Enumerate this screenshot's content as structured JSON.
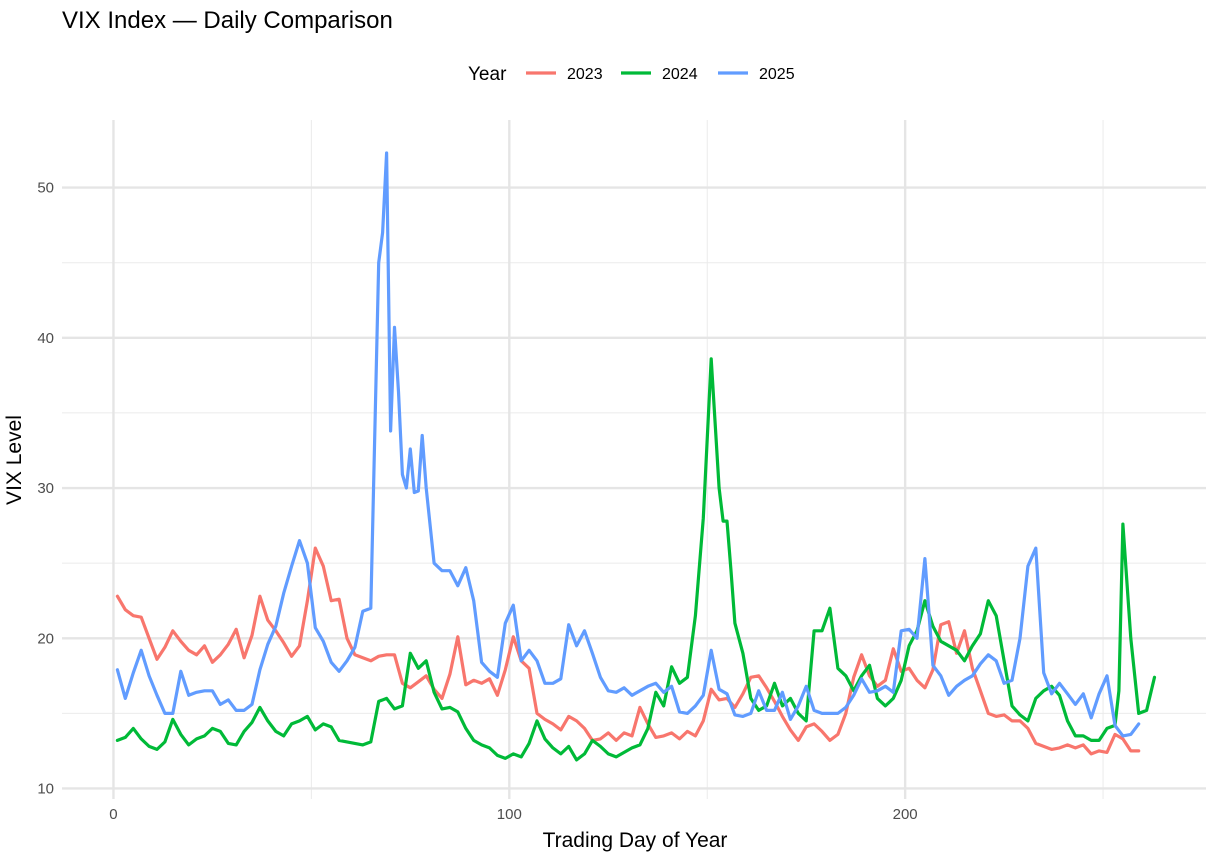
{
  "chart_data": {
    "type": "line",
    "title": "VIX Index — Daily Comparison",
    "xlabel": "Trading Day of Year",
    "ylabel": "VIX Level",
    "xlim": [
      -13,
      276
    ],
    "ylim": [
      9.3,
      54.5
    ],
    "x_ticks": [
      0,
      100,
      200
    ],
    "y_ticks": [
      10,
      20,
      30,
      40,
      50
    ],
    "grid": true,
    "legend": {
      "title": "Year",
      "position": "top"
    },
    "series": [
      {
        "name": "2023",
        "color": "#F8766D",
        "x": [
          1,
          3,
          5,
          7,
          9,
          11,
          13,
          15,
          17,
          19,
          21,
          23,
          25,
          27,
          29,
          31,
          33,
          35,
          37,
          39,
          41,
          43,
          45,
          47,
          49,
          51,
          53,
          55,
          57,
          59,
          61,
          63,
          65,
          67,
          69,
          71,
          73,
          75,
          77,
          79,
          81,
          83,
          85,
          87,
          89,
          91,
          93,
          95,
          97,
          99,
          101,
          103,
          105,
          107,
          109,
          111,
          113,
          115,
          117,
          119,
          121,
          123,
          125,
          127,
          129,
          131,
          133,
          135,
          137,
          139,
          141,
          143,
          145,
          147,
          149,
          151,
          153,
          155,
          157,
          159,
          161,
          163,
          165,
          167,
          169,
          171,
          173,
          175,
          177,
          179,
          181,
          183,
          185,
          187,
          189,
          191,
          193,
          195,
          197,
          199,
          201,
          203,
          205,
          207,
          209,
          211,
          213,
          215,
          217,
          219,
          221,
          223,
          225,
          227,
          229,
          231,
          233,
          235,
          237,
          239,
          241,
          243,
          245,
          247,
          249,
          251,
          253,
          255,
          257,
          259
        ],
        "values": [
          22.8,
          21.9,
          21.5,
          21.4,
          20.0,
          18.6,
          19.4,
          20.5,
          19.8,
          19.2,
          18.9,
          19.5,
          18.4,
          18.9,
          19.6,
          20.6,
          18.7,
          20.2,
          22.8,
          21.2,
          20.5,
          19.7,
          18.8,
          19.5,
          22.5,
          26.0,
          24.8,
          22.5,
          22.6,
          20.0,
          18.9,
          18.7,
          18.5,
          18.8,
          18.9,
          18.9,
          17.0,
          16.7,
          17.1,
          17.5,
          16.6,
          16.0,
          17.6,
          20.1,
          16.9,
          17.2,
          17.0,
          17.3,
          16.2,
          17.9,
          20.1,
          18.5,
          18.0,
          15.0,
          14.6,
          14.3,
          13.9,
          14.8,
          14.5,
          14.0,
          13.2,
          13.3,
          13.7,
          13.2,
          13.7,
          13.5,
          15.4,
          14.3,
          13.4,
          13.5,
          13.7,
          13.3,
          13.8,
          13.5,
          14.5,
          16.6,
          15.9,
          16.0,
          15.4,
          16.3,
          17.4,
          17.5,
          16.7,
          15.8,
          14.8,
          13.9,
          13.2,
          14.1,
          14.3,
          13.8,
          13.2,
          13.6,
          15.0,
          17.4,
          18.9,
          17.5,
          16.8,
          17.2,
          19.3,
          17.8,
          18.0,
          17.2,
          16.7,
          17.9,
          20.9,
          21.1,
          19.0,
          20.5,
          18.0,
          16.5,
          15.0,
          14.8,
          14.9,
          14.5,
          14.5,
          14.0,
          13.0,
          12.8,
          12.6,
          12.7,
          12.9,
          12.7,
          12.9,
          12.3,
          12.5,
          12.4,
          13.6,
          13.3,
          12.5,
          12.5
        ]
      },
      {
        "name": "2024",
        "color": "#00BA38",
        "x": [
          1,
          3,
          5,
          7,
          9,
          11,
          13,
          15,
          17,
          19,
          21,
          23,
          25,
          27,
          29,
          31,
          33,
          35,
          37,
          39,
          41,
          43,
          45,
          47,
          49,
          51,
          53,
          55,
          57,
          59,
          61,
          63,
          65,
          67,
          69,
          71,
          73,
          75,
          77,
          79,
          81,
          83,
          85,
          87,
          89,
          91,
          93,
          95,
          97,
          99,
          101,
          103,
          105,
          107,
          109,
          111,
          113,
          115,
          117,
          119,
          121,
          123,
          125,
          127,
          129,
          131,
          133,
          135,
          137,
          139,
          141,
          143,
          145,
          147,
          149,
          151,
          153,
          154,
          155,
          156,
          157,
          159,
          161,
          163,
          165,
          167,
          169,
          171,
          173,
          175,
          177,
          179,
          181,
          183,
          185,
          187,
          189,
          191,
          193,
          195,
          197,
          199,
          201,
          203,
          205,
          207,
          209,
          211,
          213,
          215,
          217,
          219,
          221,
          223,
          225,
          227,
          229,
          231,
          233,
          235,
          237,
          239,
          241,
          243,
          245,
          247,
          249,
          251,
          253,
          254,
          255,
          257,
          259,
          261,
          263
        ],
        "values": [
          13.2,
          13.4,
          14.0,
          13.3,
          12.8,
          12.6,
          13.1,
          14.6,
          13.6,
          12.9,
          13.3,
          13.5,
          14.0,
          13.8,
          13.0,
          12.9,
          13.8,
          14.4,
          15.4,
          14.5,
          13.8,
          13.5,
          14.3,
          14.5,
          14.8,
          13.9,
          14.3,
          14.1,
          13.2,
          13.1,
          13.0,
          12.9,
          13.1,
          15.8,
          16.0,
          15.3,
          15.5,
          19.0,
          18.0,
          18.5,
          16.4,
          15.3,
          15.4,
          15.1,
          14.0,
          13.2,
          12.9,
          12.7,
          12.2,
          12.0,
          12.3,
          12.1,
          13.0,
          14.5,
          13.3,
          12.7,
          12.3,
          12.8,
          11.9,
          12.3,
          13.2,
          12.8,
          12.3,
          12.1,
          12.4,
          12.7,
          12.9,
          14.0,
          16.4,
          15.5,
          18.1,
          17.0,
          17.4,
          21.5,
          28.0,
          38.6,
          30.0,
          27.8,
          27.8,
          24.5,
          21.0,
          19.0,
          16.0,
          15.2,
          15.5,
          17.0,
          15.5,
          16.0,
          15.0,
          14.5,
          20.5,
          20.5,
          22.0,
          18.0,
          17.5,
          16.5,
          17.5,
          18.2,
          16.0,
          15.5,
          16.0,
          17.2,
          19.5,
          20.5,
          22.5,
          20.8,
          19.8,
          19.5,
          19.2,
          18.5,
          19.5,
          20.3,
          22.5,
          21.5,
          18.5,
          15.5,
          14.9,
          14.5,
          16.0,
          16.5,
          16.8,
          16.2,
          14.5,
          13.5,
          13.5,
          13.2,
          13.2,
          14.0,
          14.2,
          16.5,
          27.6,
          20.0,
          15.0,
          15.2,
          17.4
        ]
      },
      {
        "name": "2025",
        "color": "#619CFF",
        "x": [
          1,
          3,
          5,
          7,
          9,
          11,
          13,
          15,
          17,
          19,
          21,
          23,
          25,
          27,
          29,
          31,
          33,
          35,
          37,
          39,
          41,
          43,
          45,
          47,
          49,
          51,
          53,
          55,
          57,
          59,
          61,
          63,
          65,
          67,
          68,
          69,
          70,
          71,
          72,
          73,
          74,
          75,
          76,
          77,
          78,
          79,
          81,
          83,
          85,
          87,
          89,
          91,
          93,
          95,
          97,
          99,
          101,
          103,
          105,
          107,
          109,
          111,
          113,
          115,
          117,
          119,
          121,
          123,
          125,
          127,
          129,
          131,
          133,
          135,
          137,
          139,
          141,
          143,
          145,
          147,
          149,
          151,
          153,
          155,
          157,
          159,
          161,
          163,
          165,
          167,
          169,
          171,
          173,
          175,
          177,
          179,
          181,
          183,
          185,
          187,
          189,
          191,
          193,
          195,
          197,
          199,
          201,
          203,
          205,
          207,
          209,
          211,
          213,
          215,
          217,
          219,
          221,
          223,
          225,
          227,
          229,
          231,
          233,
          235,
          237,
          239,
          241,
          243,
          245,
          247,
          249,
          251,
          253,
          255,
          257,
          259
        ],
        "values": [
          17.9,
          16.0,
          17.7,
          19.2,
          17.5,
          16.2,
          15.0,
          15.0,
          17.8,
          16.2,
          16.4,
          16.5,
          16.5,
          15.6,
          15.9,
          15.2,
          15.2,
          15.6,
          17.9,
          19.6,
          20.8,
          23.0,
          24.8,
          26.5,
          25.0,
          20.7,
          19.8,
          18.4,
          17.8,
          18.5,
          19.4,
          21.8,
          22.0,
          45.0,
          47.0,
          52.3,
          33.8,
          40.7,
          36.4,
          30.9,
          30.0,
          32.6,
          29.7,
          29.8,
          33.5,
          30.0,
          25.0,
          24.5,
          24.5,
          23.5,
          24.7,
          22.5,
          18.4,
          17.8,
          17.4,
          21.0,
          22.2,
          18.5,
          19.2,
          18.5,
          17.0,
          17.0,
          17.3,
          20.9,
          19.5,
          20.5,
          19.0,
          17.4,
          16.5,
          16.4,
          16.7,
          16.2,
          16.5,
          16.8,
          17.0,
          16.4,
          16.8,
          15.1,
          15.0,
          15.5,
          16.2,
          19.2,
          16.6,
          16.3,
          14.9,
          14.8,
          15.0,
          16.5,
          15.2,
          15.2,
          16.4,
          14.6,
          15.5,
          16.8,
          15.2,
          15.0,
          15.0,
          15.0,
          15.4,
          16.2,
          17.3,
          16.4,
          16.5,
          16.8,
          16.4,
          20.5,
          20.6,
          20.0,
          25.3,
          18.2,
          17.5,
          16.2,
          16.8,
          17.2,
          17.5,
          18.3,
          18.9,
          18.5,
          17.0,
          17.2,
          20.0,
          24.8,
          26.0,
          17.7,
          16.3,
          17.0,
          16.3,
          15.6,
          16.3,
          14.7,
          16.3,
          17.5,
          14.2,
          13.5,
          13.6,
          14.3
        ]
      }
    ]
  }
}
